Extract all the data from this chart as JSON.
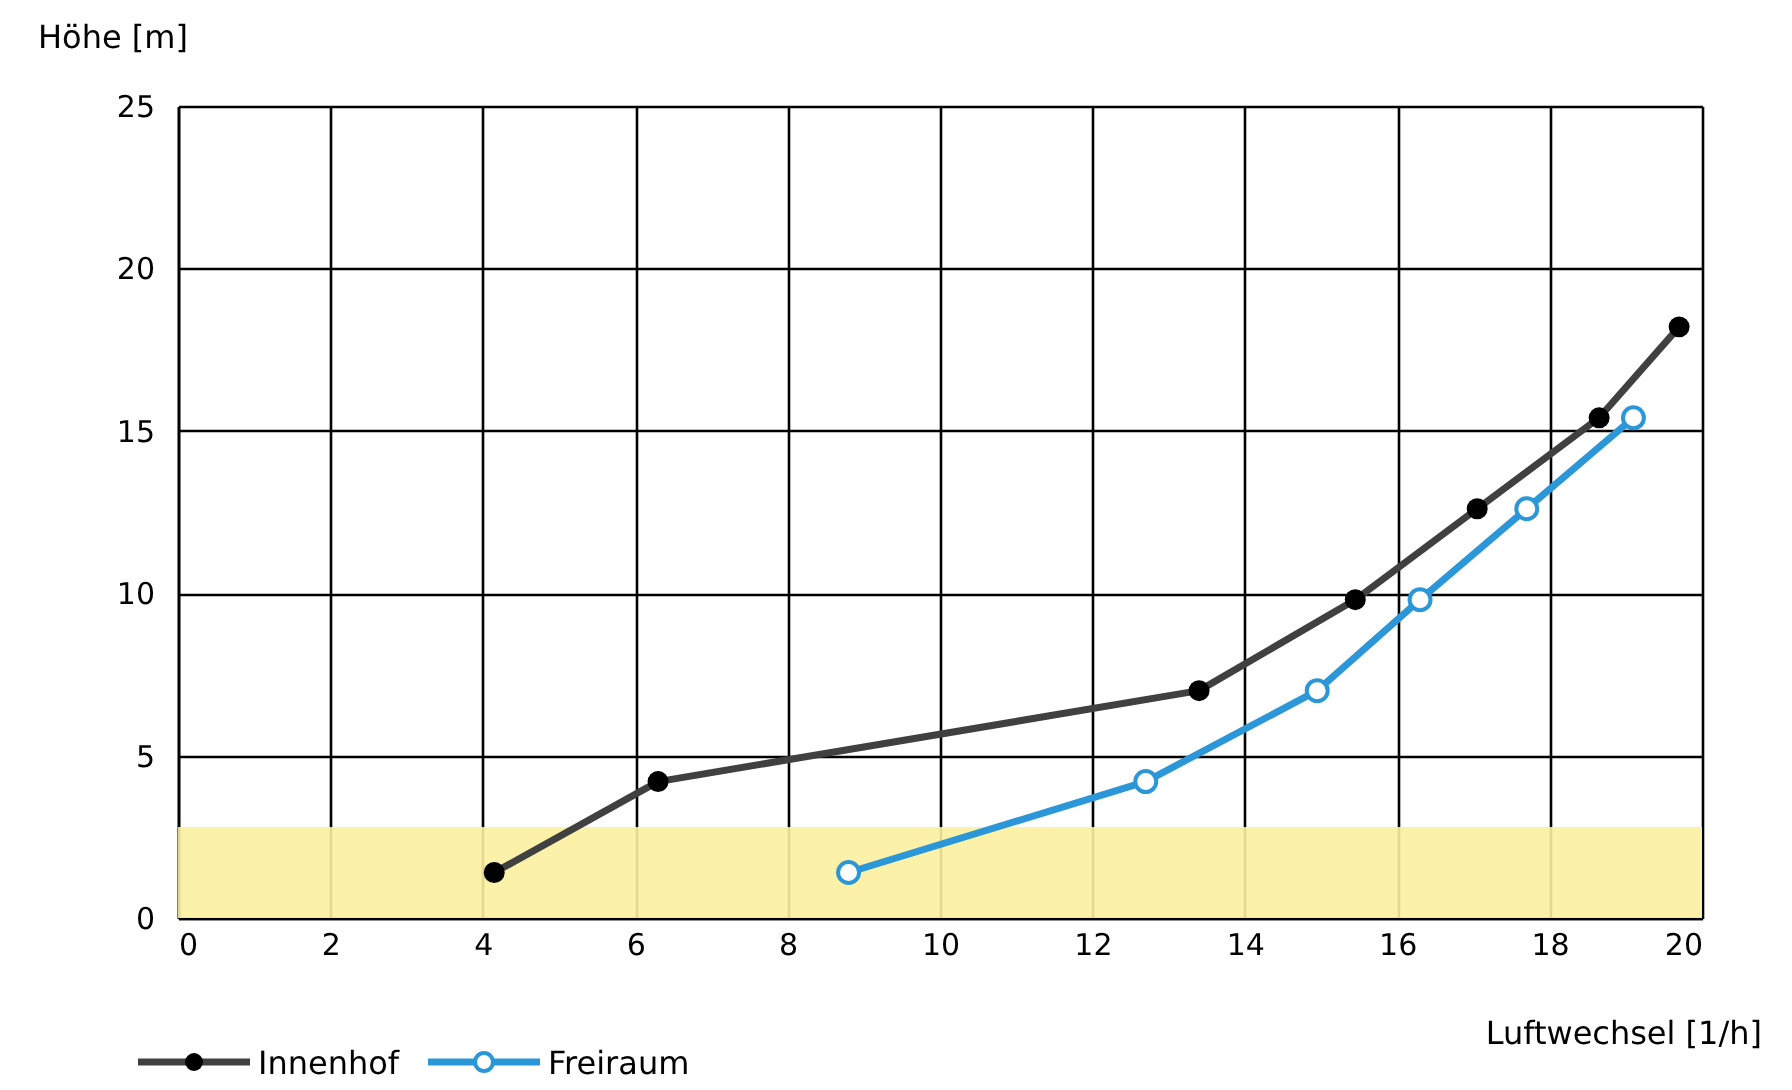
{
  "chart_data": {
    "type": "line",
    "xlabel": "Luftwechsel [1/h]",
    "ylabel": "Höhe [m]",
    "xlim": [
      0,
      20
    ],
    "xticks": [
      0,
      2,
      4,
      6,
      8,
      10,
      12,
      14,
      16,
      18,
      20
    ],
    "ylim": [
      0,
      25
    ],
    "yticks": [
      0,
      5,
      10,
      15,
      20,
      25
    ],
    "grid": true,
    "legend": "bottom left",
    "bands": [
      {
        "axis": "y",
        "from": 0,
        "to": 2.8,
        "color": "#fbf0a0"
      }
    ],
    "series": [
      {
        "name": "Innenhof",
        "color": "#404040",
        "marker": "circle",
        "x": [
          4.15,
          6.3,
          13.4,
          15.45,
          17.05,
          18.65,
          19.7
        ],
        "values": [
          1.4,
          4.2,
          7.0,
          9.8,
          12.6,
          15.4,
          18.2
        ]
      },
      {
        "name": "Freiraum",
        "color": "#2b97d8",
        "marker": "circle_open",
        "x": [
          8.8,
          12.7,
          14.95,
          16.3,
          17.7,
          19.1
        ],
        "values": [
          1.4,
          4.2,
          7.0,
          9.8,
          12.6,
          15.4
        ]
      }
    ]
  }
}
